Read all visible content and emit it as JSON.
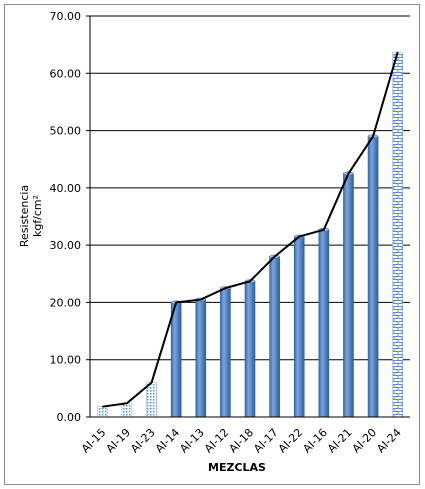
{
  "chart_data": {
    "type": "bar",
    "title": "",
    "xlabel": "MEZCLAS",
    "ylabel_line1": "Resistencia",
    "ylabel_line2": "kgf/cm²",
    "ylim": [
      0,
      70
    ],
    "y_ticks": [
      "0.00",
      "10.00",
      "20.00",
      "30.00",
      "40.00",
      "50.00",
      "60.00",
      "70.00"
    ],
    "grid": true,
    "legend": "none",
    "categories": [
      "AI-15",
      "AI-19",
      "AI-23",
      "AI-14",
      "AI-13",
      "AI-12",
      "AI-18",
      "AI-17",
      "AI-22",
      "AI-16",
      "AI-21",
      "AI-20",
      "AI-24"
    ],
    "values": [
      1.8,
      2.4,
      6.0,
      20.0,
      20.5,
      22.5,
      23.7,
      28.0,
      31.5,
      32.7,
      42.5,
      49.0,
      63.7
    ],
    "bar_styles": [
      "dotted",
      "dotted",
      "dotted",
      "solid",
      "solid",
      "solid",
      "solid",
      "solid",
      "solid",
      "solid",
      "solid",
      "solid",
      "brick"
    ],
    "line_series": {
      "values": [
        1.8,
        2.4,
        6.0,
        20.0,
        20.5,
        22.5,
        23.7,
        28.0,
        31.5,
        32.7,
        42.5,
        49.0,
        63.7
      ],
      "color": "#000000"
    },
    "colors": {
      "bar_fill": "#4f81bd",
      "bar_dark": "#2e5f9e",
      "pattern": "#5b8fd1",
      "grid": "#000000"
    }
  }
}
